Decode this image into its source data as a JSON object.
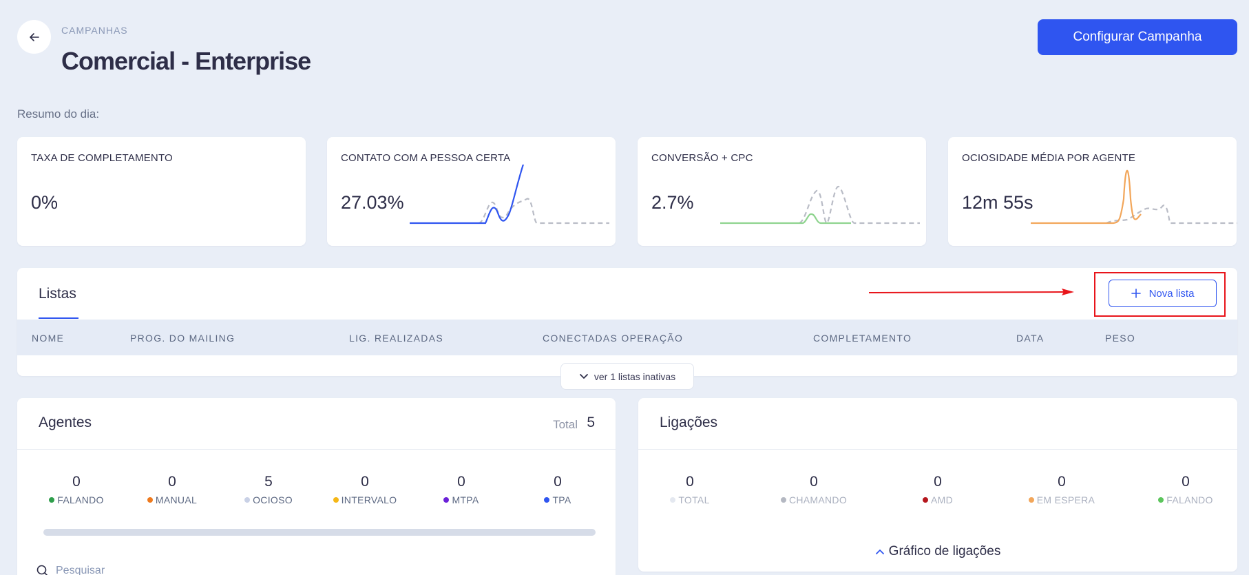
{
  "header": {
    "breadcrumb": "CAMPANHAS",
    "title": "Comercial - Enterprise",
    "config_button": "Configurar Campanha"
  },
  "summary_label": "Resumo do dia:",
  "stats": [
    {
      "label": "TAXA DE COMPLETAMENTO",
      "value": "0%"
    },
    {
      "label": "CONTATO COM A PESSOA CERTA",
      "value": "27.03%",
      "accent": "#2f55f0"
    },
    {
      "label": "CONVERSÃO + CPC",
      "value": "2.7%",
      "accent": "#8fd48f"
    },
    {
      "label": "OCIOSIDADE MÉDIA POR AGENTE",
      "value": "12m 55s",
      "accent": "#f2a65a"
    }
  ],
  "listas": {
    "title": "Listas",
    "new_button": "Nova lista",
    "columns": [
      "NOME",
      "PROG. DO MAILING",
      "LIG. REALIZADAS",
      "CONECTADAS OPERAÇÃO",
      "COMPLETAMENTO",
      "DATA",
      "PESO"
    ],
    "inactive_button": "ver 1 listas inativas"
  },
  "agentes": {
    "title": "Agentes",
    "total_label": "Total",
    "total_value": "5",
    "metrics": [
      {
        "value": "0",
        "label": "FALANDO",
        "color": "#2e9e4b"
      },
      {
        "value": "0",
        "label": "MANUAL",
        "color": "#ee7a1e"
      },
      {
        "value": "5",
        "label": "OCIOSO",
        "color": "#c9d1e6"
      },
      {
        "value": "0",
        "label": "INTERVALO",
        "color": "#f5b716"
      },
      {
        "value": "0",
        "label": "MTPA",
        "color": "#6b21d8"
      },
      {
        "value": "0",
        "label": "TPA",
        "color": "#2f55f0"
      }
    ],
    "search_placeholder": "Pesquisar"
  },
  "ligacoes": {
    "title": "Ligações",
    "metrics": [
      {
        "value": "0",
        "label": "TOTAL",
        "color": "#e4e8f0"
      },
      {
        "value": "0",
        "label": "CHAMANDO",
        "color": "#b4b8c2"
      },
      {
        "value": "0",
        "label": "AMD",
        "color": "#b5161d"
      },
      {
        "value": "0",
        "label": "EM ESPERA",
        "color": "#f2a65a"
      },
      {
        "value": "0",
        "label": "FALANDO",
        "color": "#5cc55c"
      }
    ],
    "chart_toggle": "Gráfico de ligações"
  }
}
